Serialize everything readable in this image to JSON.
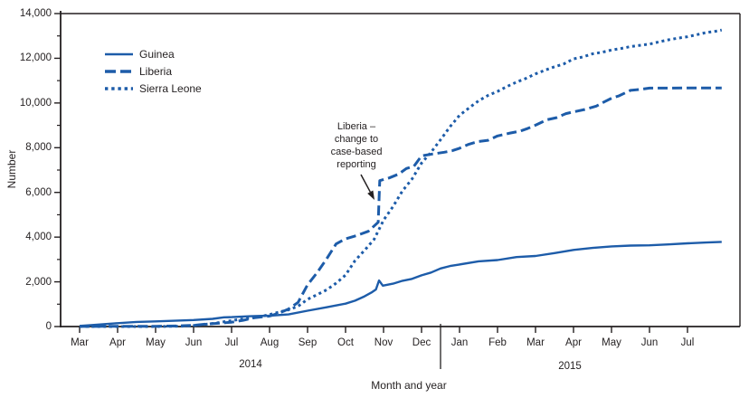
{
  "chart_data": {
    "type": "line",
    "title": "",
    "xlabel": "Month and year",
    "ylabel": "Number",
    "ylim": [
      0,
      14000
    ],
    "ytick_interval": 2000,
    "ytick_minor_interval": 1000,
    "grid": false,
    "legend_position": "upper-left-inside",
    "x_unit": "months since Mar 2014 (0 = Mar 2014, 16 = Jul 2015)",
    "ytick_labels": [
      {
        "v": 0,
        "label": "0"
      },
      {
        "v": 2000,
        "label": "2,000"
      },
      {
        "v": 4000,
        "label": "4,000"
      },
      {
        "v": 6000,
        "label": "6,000"
      },
      {
        "v": 8000,
        "label": "8,000"
      },
      {
        "v": 10000,
        "label": "10,000"
      },
      {
        "v": 12000,
        "label": "12,000"
      },
      {
        "v": 14000,
        "label": "14,000"
      }
    ],
    "months_2014": [
      "Mar",
      "Apr",
      "May",
      "Jun",
      "Jul",
      "Aug",
      "Sep",
      "Oct",
      "Nov",
      "Dec"
    ],
    "months_2015": [
      "Jan",
      "Feb",
      "Mar",
      "Apr",
      "May",
      "Jun",
      "Jul"
    ],
    "year_labels": [
      "2014",
      "2015"
    ],
    "annotation": {
      "lines": [
        "Liberia –",
        "change to",
        "case-based",
        "reporting"
      ],
      "points_to": "Liberia line vertical jump, late Oct 2014"
    },
    "colors": {
      "line": "#1d5ca9",
      "axis": "#231f20",
      "text": "#231f20"
    },
    "series": [
      {
        "name": "Guinea",
        "style": "solid",
        "points": [
          [
            0,
            30
          ],
          [
            0.3,
            60
          ],
          [
            0.7,
            112
          ],
          [
            1,
            151
          ],
          [
            1.5,
            208
          ],
          [
            2,
            231
          ],
          [
            2.5,
            258
          ],
          [
            3,
            291
          ],
          [
            3.5,
            344
          ],
          [
            3.8,
            413
          ],
          [
            4,
            420
          ],
          [
            4.5,
            460
          ],
          [
            5,
            485
          ],
          [
            5.5,
            543
          ],
          [
            6,
            710
          ],
          [
            6.5,
            862
          ],
          [
            7,
            1022
          ],
          [
            7.25,
            1157
          ],
          [
            7.5,
            1350
          ],
          [
            7.7,
            1540
          ],
          [
            7.8,
            1660
          ],
          [
            7.88,
            2060
          ],
          [
            7.98,
            1830
          ],
          [
            8.25,
            1919
          ],
          [
            8.5,
            2047
          ],
          [
            8.75,
            2134
          ],
          [
            9,
            2292
          ],
          [
            9.25,
            2416
          ],
          [
            9.5,
            2597
          ],
          [
            9.75,
            2707
          ],
          [
            10,
            2775
          ],
          [
            10.5,
            2917
          ],
          [
            11,
            2975
          ],
          [
            11.5,
            3108
          ],
          [
            12,
            3155
          ],
          [
            12.5,
            3285
          ],
          [
            13,
            3429
          ],
          [
            13.5,
            3515
          ],
          [
            14,
            3584
          ],
          [
            14.5,
            3620
          ],
          [
            15,
            3635
          ],
          [
            15.5,
            3674
          ],
          [
            16,
            3724
          ],
          [
            16.5,
            3760
          ],
          [
            16.9,
            3786
          ]
        ]
      },
      {
        "name": "Liberia",
        "style": "dashed",
        "points": [
          [
            0,
            5
          ],
          [
            1,
            13
          ],
          [
            2,
            13
          ],
          [
            2.5,
            25
          ],
          [
            3,
            51
          ],
          [
            3.3,
            107
          ],
          [
            3.6,
            142
          ],
          [
            4,
            196
          ],
          [
            4.3,
            280
          ],
          [
            4.6,
            391
          ],
          [
            5,
            468
          ],
          [
            5.25,
            599
          ],
          [
            5.5,
            786
          ],
          [
            5.75,
            1082
          ],
          [
            6,
            1871
          ],
          [
            6.25,
            2407
          ],
          [
            6.5,
            3022
          ],
          [
            6.75,
            3696
          ],
          [
            7,
            3924
          ],
          [
            7.3,
            4076
          ],
          [
            7.6,
            4262
          ],
          [
            7.86,
            4665
          ],
          [
            7.9,
            6525
          ],
          [
            8.15,
            6650
          ],
          [
            8.4,
            6822
          ],
          [
            8.6,
            7069
          ],
          [
            8.8,
            7168
          ],
          [
            9,
            7635
          ],
          [
            9.3,
            7719
          ],
          [
            9.6,
            7797
          ],
          [
            9.8,
            7862
          ],
          [
            10,
            7977
          ],
          [
            10.25,
            8157
          ],
          [
            10.5,
            8278
          ],
          [
            10.75,
            8331
          ],
          [
            11,
            8524
          ],
          [
            11.3,
            8643
          ],
          [
            11.6,
            8745
          ],
          [
            11.8,
            8864
          ],
          [
            12,
            9007
          ],
          [
            12.3,
            9249
          ],
          [
            12.55,
            9343
          ],
          [
            12.8,
            9526
          ],
          [
            13,
            9602
          ],
          [
            13.3,
            9712
          ],
          [
            13.6,
            9862
          ],
          [
            13.8,
            10042
          ],
          [
            14,
            10212
          ],
          [
            14.2,
            10322
          ],
          [
            14.5,
            10564
          ],
          [
            14.75,
            10604
          ],
          [
            15,
            10666
          ],
          [
            15.5,
            10666
          ],
          [
            16,
            10672
          ],
          [
            16.9,
            10673
          ]
        ]
      },
      {
        "name": "Sierra Leone",
        "style": "dotted",
        "points": [
          [
            0,
            0
          ],
          [
            1,
            0
          ],
          [
            2,
            1
          ],
          [
            2.7,
            16
          ],
          [
            3,
            50
          ],
          [
            3.3,
            97
          ],
          [
            3.6,
            158
          ],
          [
            3.9,
            239
          ],
          [
            4.2,
            315
          ],
          [
            4.5,
            386
          ],
          [
            4.8,
            462
          ],
          [
            5,
            533
          ],
          [
            5.25,
            646
          ],
          [
            5.5,
            750
          ],
          [
            5.75,
            907
          ],
          [
            6,
            1216
          ],
          [
            6.25,
            1424
          ],
          [
            6.5,
            1640
          ],
          [
            6.75,
            1940
          ],
          [
            7,
            2304
          ],
          [
            7.25,
            2950
          ],
          [
            7.5,
            3410
          ],
          [
            7.75,
            3896
          ],
          [
            8,
            4759
          ],
          [
            8.25,
            5368
          ],
          [
            8.5,
            6073
          ],
          [
            8.75,
            6599
          ],
          [
            9,
            7312
          ],
          [
            9.25,
            7798
          ],
          [
            9.5,
            8356
          ],
          [
            9.75,
            8939
          ],
          [
            10,
            9446
          ],
          [
            10.25,
            9780
          ],
          [
            10.5,
            10094
          ],
          [
            10.75,
            10340
          ],
          [
            11,
            10518
          ],
          [
            11.25,
            10740
          ],
          [
            11.5,
            10934
          ],
          [
            11.75,
            11103
          ],
          [
            12,
            11301
          ],
          [
            12.25,
            11466
          ],
          [
            12.5,
            11619
          ],
          [
            12.75,
            11751
          ],
          [
            13,
            11974
          ],
          [
            13.25,
            12060
          ],
          [
            13.5,
            12201
          ],
          [
            13.75,
            12267
          ],
          [
            14,
            12371
          ],
          [
            14.25,
            12440
          ],
          [
            14.5,
            12523
          ],
          [
            14.75,
            12580
          ],
          [
            15,
            12632
          ],
          [
            15.25,
            12735
          ],
          [
            15.5,
            12827
          ],
          [
            15.75,
            12901
          ],
          [
            16,
            12965
          ],
          [
            16.25,
            13059
          ],
          [
            16.5,
            13155
          ],
          [
            16.75,
            13209
          ],
          [
            16.9,
            13264
          ]
        ]
      }
    ]
  }
}
